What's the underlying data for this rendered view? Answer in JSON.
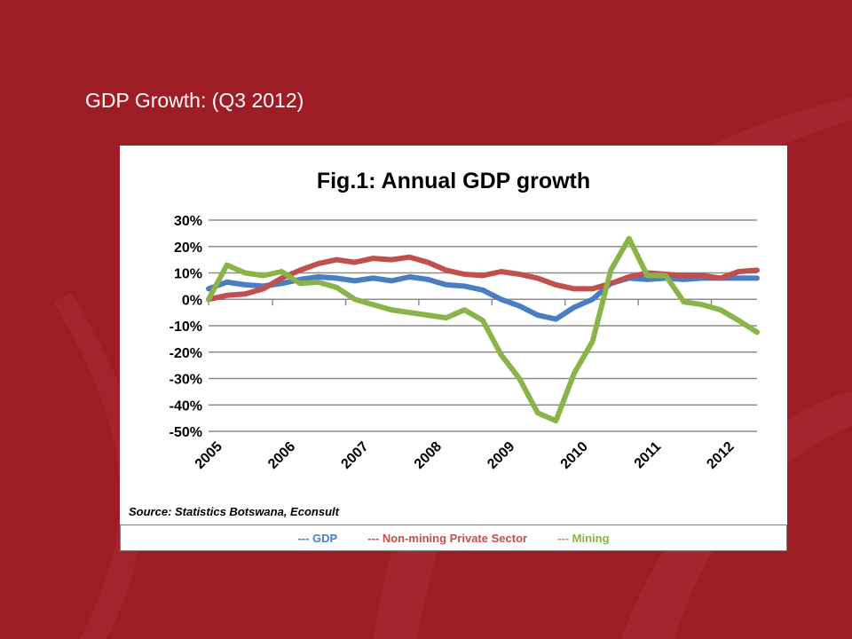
{
  "slide": {
    "title": "GDP Growth: (Q3 2012)"
  },
  "colors": {
    "background": "#9e1c24",
    "gdp": "#4a7ec0",
    "non_mining": "#c0504d",
    "mining": "#8ab44a"
  },
  "chart_data": {
    "type": "line",
    "title": "Fig.1: Annual GDP growth",
    "source": "Source: Statistics Botswana, Econsult",
    "ylim": [
      -50,
      30
    ],
    "y_ticks": [
      "30%",
      "20%",
      "10%",
      "0%",
      "-10%",
      "-20%",
      "-30%",
      "-40%",
      "-50%"
    ],
    "year_labels": [
      "2005",
      "2006",
      "2007",
      "2008",
      "2009",
      "2010",
      "2011",
      "2012"
    ],
    "grid": true,
    "x_quarters": [
      "2005Q1",
      "2005Q2",
      "2005Q3",
      "2005Q4",
      "2006Q1",
      "2006Q2",
      "2006Q3",
      "2006Q4",
      "2007Q1",
      "2007Q2",
      "2007Q3",
      "2007Q4",
      "2008Q1",
      "2008Q2",
      "2008Q3",
      "2008Q4",
      "2009Q1",
      "2009Q2",
      "2009Q3",
      "2009Q4",
      "2010Q1",
      "2010Q2",
      "2010Q3",
      "2010Q4",
      "2011Q1",
      "2011Q2",
      "2011Q3",
      "2011Q4",
      "2012Q1",
      "2012Q2",
      "2012Q3"
    ],
    "series": [
      {
        "name": "GDP",
        "values": [
          4,
          6.5,
          5.5,
          5,
          6,
          7.5,
          8.5,
          8,
          7,
          8,
          7,
          8.5,
          7.5,
          5.5,
          5,
          3.5,
          0,
          -2.5,
          -6,
          -7.5,
          -3,
          0,
          6,
          8,
          7.5,
          8,
          7.5,
          8,
          8,
          8,
          8
        ]
      },
      {
        "name": "Non-mining Private Sector",
        "values": [
          0,
          1.5,
          2,
          4,
          8,
          11,
          13.5,
          15,
          14,
          15.5,
          15,
          16,
          14,
          11,
          9.5,
          9,
          10.5,
          9.5,
          8,
          5.5,
          4,
          4,
          6,
          8.5,
          10,
          9.5,
          9,
          9,
          8,
          10.5,
          11
        ]
      },
      {
        "name": "Mining",
        "values": [
          0,
          13,
          10,
          9,
          10.5,
          6,
          6.5,
          4.5,
          0,
          -2,
          -4,
          -5,
          -6,
          -7,
          -4,
          -8,
          -21,
          -30,
          -43,
          -46,
          -28,
          -16,
          11,
          23,
          9,
          9,
          -1,
          -2,
          -4,
          -8,
          -12.5
        ]
      }
    ]
  },
  "legend": {
    "items": [
      {
        "label": "--- GDP",
        "color": "#4a7ec0"
      },
      {
        "label": "--- Non-mining Private Sector",
        "color": "#c0504d"
      },
      {
        "label": "--- Mining",
        "color": "#8ab44a"
      }
    ]
  }
}
